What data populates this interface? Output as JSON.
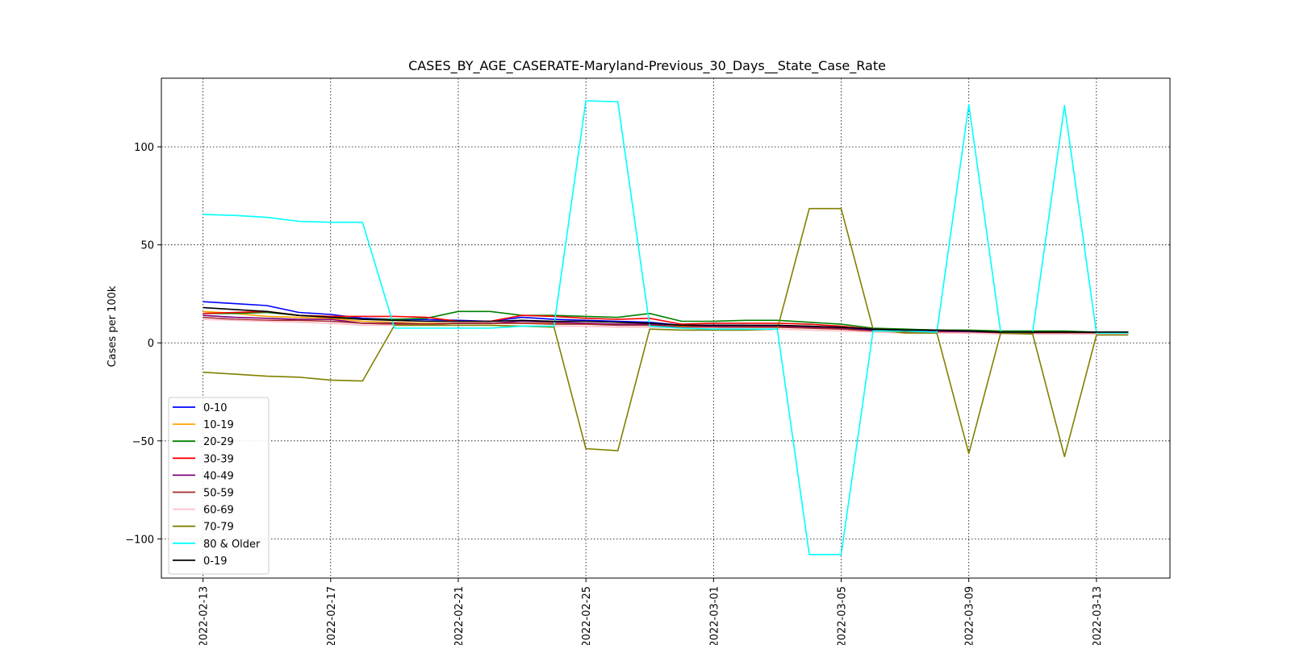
{
  "chart_data": {
    "type": "line",
    "title": "CASES_BY_AGE_CASERATE-Maryland-Previous_30_Days__State_Case_Rate",
    "xlabel": "",
    "ylabel": "Cases per 100k",
    "x": [
      "2022-02-13",
      "2022-02-14",
      "2022-02-15",
      "2022-02-16",
      "2022-02-17",
      "2022-02-18",
      "2022-02-19",
      "2022-02-20",
      "2022-02-21",
      "2022-02-22",
      "2022-02-23",
      "2022-02-24",
      "2022-02-25",
      "2022-02-26",
      "2022-02-27",
      "2022-02-28",
      "2022-03-01",
      "2022-03-02",
      "2022-03-03",
      "2022-03-04",
      "2022-03-05",
      "2022-03-06",
      "2022-03-07",
      "2022-03-08",
      "2022-03-09",
      "2022-03-10",
      "2022-03-11",
      "2022-03-12",
      "2022-03-13",
      "2022-03-14"
    ],
    "x_ticks": [
      "2022-02-13",
      "2022-02-17",
      "2022-02-21",
      "2022-02-25",
      "2022-03-01",
      "2022-03-05",
      "2022-03-09",
      "2022-03-13"
    ],
    "y_ticks": [
      100,
      50,
      0,
      -50,
      -100
    ],
    "ylim": [
      -120,
      135
    ],
    "grid": true,
    "legend_position": "lower-left",
    "series": [
      {
        "name": "0-10",
        "color": "#0000ff",
        "values": [
          21,
          20,
          19,
          15.5,
          14.5,
          12.5,
          12,
          11.8,
          11.5,
          11,
          13,
          12,
          11.5,
          11,
          10.5,
          9,
          9,
          9,
          8.5,
          8.5,
          7.5,
          6.5,
          6,
          5.8,
          5.5,
          5.5,
          5.5,
          5.5,
          5.5,
          5.5
        ]
      },
      {
        "name": "10-19",
        "color": "#ffa500",
        "values": [
          16,
          15,
          13.5,
          13,
          12.5,
          11,
          10.5,
          10,
          10,
          10,
          10,
          10,
          10,
          9.5,
          9,
          8.5,
          8.5,
          8,
          8,
          7.5,
          7,
          6,
          5.5,
          5.5,
          5,
          5,
          5,
          5,
          5,
          5
        ]
      },
      {
        "name": "20-29",
        "color": "#008000",
        "values": [
          15,
          15,
          15.5,
          14,
          13.5,
          12,
          12,
          12.5,
          16,
          16,
          14,
          14,
          13.5,
          13,
          15,
          11,
          11,
          11.5,
          11.5,
          10.5,
          9.5,
          7.5,
          7,
          6.5,
          6.5,
          6,
          6,
          6,
          5.5,
          5.5
        ]
      },
      {
        "name": "30-39",
        "color": "#ff0000",
        "values": [
          15,
          15.5,
          16,
          14,
          13.5,
          13.5,
          13.5,
          13,
          11,
          11,
          14,
          13.5,
          12.5,
          12,
          12.5,
          9.5,
          10,
          10,
          10,
          9.5,
          8.5,
          7,
          6.5,
          6,
          5.5,
          5.5,
          5.5,
          5.5,
          5,
          5
        ]
      },
      {
        "name": "40-49",
        "color": "#800080",
        "values": [
          14,
          13,
          12.5,
          12,
          12,
          10,
          10,
          9.5,
          10,
          10,
          11,
          10.5,
          10,
          9.5,
          9.5,
          8,
          8.5,
          8.5,
          8.5,
          8,
          7.5,
          6,
          6,
          6,
          5.5,
          5,
          5,
          5,
          5,
          5
        ]
      },
      {
        "name": "50-59",
        "color": "#a52a2a",
        "values": [
          13,
          12,
          11.5,
          11.5,
          11,
          10,
          9.5,
          9.5,
          10,
          10,
          10,
          9.5,
          9.5,
          9,
          9,
          8,
          8,
          8,
          8,
          7.5,
          7,
          6,
          5.5,
          5.5,
          5,
          5,
          5,
          5,
          5,
          5
        ]
      },
      {
        "name": "60-69",
        "color": "#ffc0cb",
        "values": [
          12,
          11.5,
          11,
          10.5,
          10,
          9,
          9,
          9,
          9,
          9,
          8.5,
          8.5,
          8.5,
          8,
          8,
          7.5,
          7.5,
          7,
          7,
          6.5,
          6,
          5.5,
          5,
          5,
          5,
          4.5,
          4.5,
          4.5,
          4.5,
          4.5
        ]
      },
      {
        "name": "70-79",
        "color": "#808000",
        "values": [
          -15,
          -16,
          -17,
          -17.5,
          -19,
          -19.5,
          9,
          9,
          9,
          9,
          8.5,
          8,
          -54,
          -55,
          7,
          6.5,
          6.5,
          6.5,
          7,
          68.5,
          68.5,
          7,
          5,
          5,
          -56.5,
          5,
          4.5,
          -58,
          4,
          4
        ]
      },
      {
        "name": "80 & Older",
        "color": "#00ffff",
        "values": [
          65.5,
          65,
          64,
          62,
          61.5,
          61.5,
          7.5,
          7.5,
          7.5,
          7.5,
          8.5,
          8.5,
          123.5,
          123,
          8.5,
          7.5,
          7,
          7,
          7,
          -108,
          -108,
          6,
          6,
          5.5,
          121.5,
          5.5,
          5.5,
          121,
          5,
          5
        ]
      },
      {
        "name": "0-19",
        "color": "#000000",
        "values": [
          18,
          17,
          16,
          14,
          13,
          12,
          11.5,
          11,
          11,
          11,
          11.5,
          11,
          11,
          10.5,
          10,
          9,
          9,
          9,
          9,
          8.5,
          8,
          7,
          6.5,
          6.5,
          6,
          5.5,
          5.5,
          5.5,
          5.5,
          5.5
        ]
      }
    ]
  }
}
